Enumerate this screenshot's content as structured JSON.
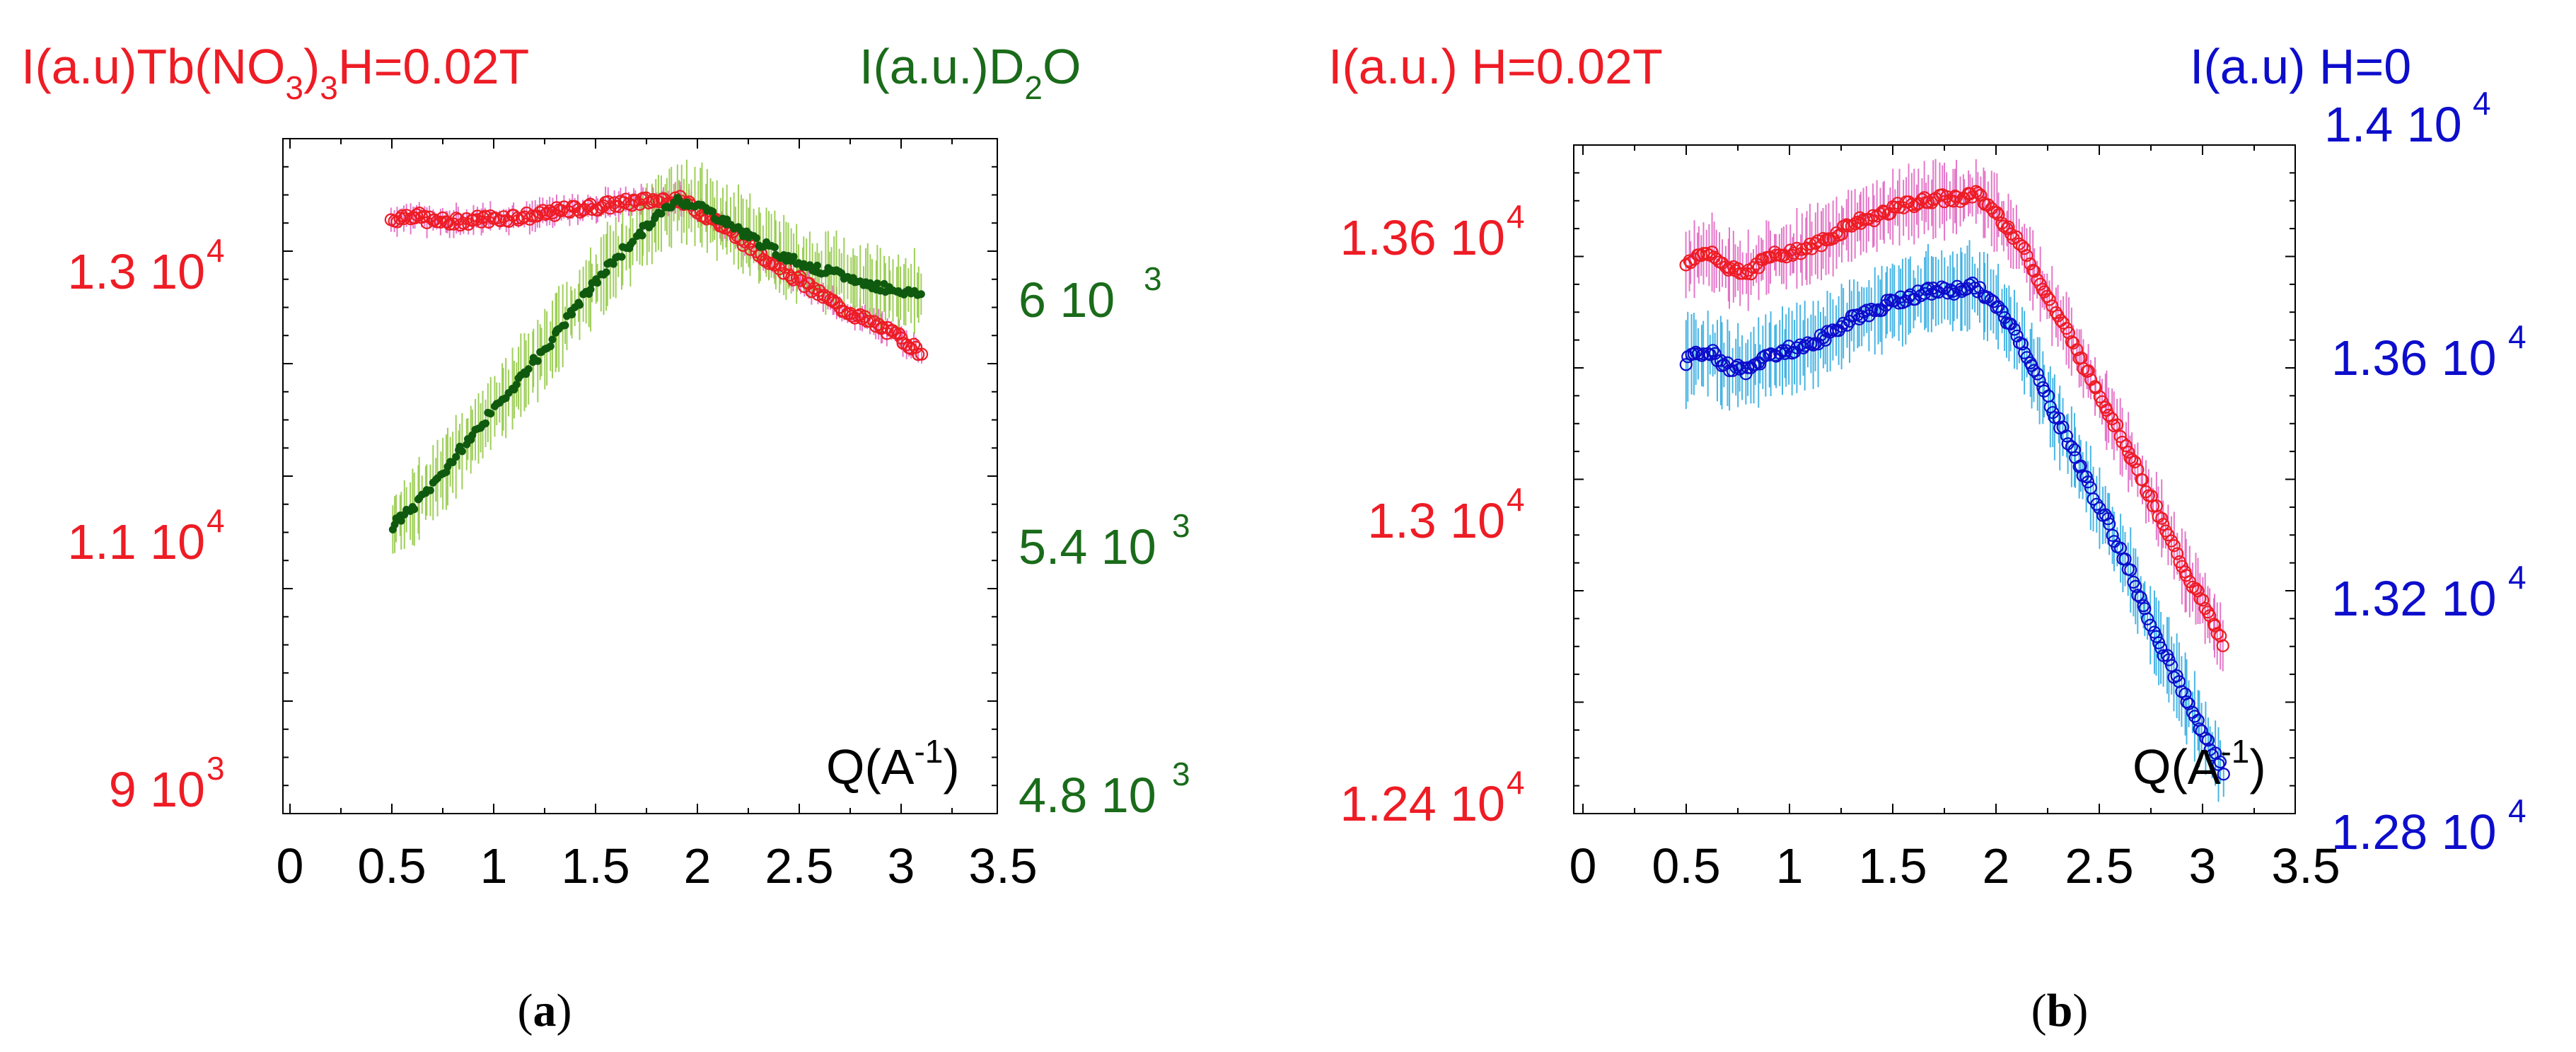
{
  "figure": {
    "panels": [
      {
        "id": "a",
        "caption_open": "(",
        "caption_letter": "a",
        "caption_close": ")",
        "left_label_main": "I(a.u)Tb(NO",
        "left_label_sub1": "3",
        "left_label_mid": ")",
        "left_label_sub2": "3",
        "left_label_end": "H=0.02T",
        "right_label_main": "I(a.u.)D",
        "right_label_sub": "2",
        "right_label_end": "O",
        "x_label_main": "Q(A",
        "x_label_sup": "-1",
        "x_label_end": ")",
        "left_ticks": [
          {
            "value": 13000,
            "mant": "1.3 10",
            "exp": "4"
          },
          {
            "value": 11000,
            "mant": "1.1 10",
            "exp": "4"
          },
          {
            "value": 9000,
            "mant": "9 10",
            "exp": "3"
          }
        ],
        "right_ticks": [
          {
            "value": 6000,
            "mant": "6 10",
            "exp": "3"
          },
          {
            "value": 5400,
            "mant": "5.4 10",
            "exp": "3"
          },
          {
            "value": 4800,
            "mant": "4.8 10",
            "exp": "3"
          }
        ],
        "x_ticks": [
          "0",
          "0.5",
          "1",
          "1.5",
          "2",
          "2.5",
          "3",
          "3.5"
        ]
      },
      {
        "id": "b",
        "caption_open": "(",
        "caption_letter": "b",
        "caption_close": ")",
        "left_label": "I(a.u.) H=0.02T",
        "right_label": "I(a.u) H=0",
        "right_top_mant": "1.4 10",
        "right_top_exp": "4",
        "x_label_main": "Q(A",
        "x_label_sup": "-1",
        "x_label_end": ")",
        "left_ticks": [
          {
            "value": 13600,
            "mant": "1.36 10",
            "exp": "4"
          },
          {
            "value": 13000,
            "mant": "1.3 10",
            "exp": "4"
          },
          {
            "value": 12400,
            "mant": "1.24 10",
            "exp": "4"
          }
        ],
        "right_ticks": [
          {
            "value": 13600,
            "mant": "1.36 10",
            "exp": "4"
          },
          {
            "value": 13200,
            "mant": "1.32 10",
            "exp": "4"
          },
          {
            "value": 12800,
            "mant": "1.28 10",
            "exp": "4"
          }
        ],
        "x_ticks": [
          "0",
          "0.5",
          "1",
          "1.5",
          "2",
          "2.5",
          "3",
          "3.5"
        ]
      }
    ]
  },
  "colors": {
    "red": "#ee1c25",
    "green": "#1a6b1a",
    "green_points": "#0f5a0f",
    "green_errorbars": "#8fc73e",
    "blue": "#0d0dcc",
    "cyan_errorbars": "#29a9e0",
    "pink_errorbars": "#e060c0",
    "axis": "#000000"
  },
  "chart_data": [
    {
      "panel": "a",
      "type": "scatter",
      "title": "",
      "xlabel": "Q(A^-1)",
      "xlim": [
        0,
        3.5
      ],
      "series": [
        {
          "name": "Tb(NO3)3 H=0.02T",
          "axis": "left",
          "ylabel": "I(a.u)Tb(NO3)3H=0.02T",
          "ylim": [
            8600,
            13850
          ],
          "marker": "open-circle",
          "color": "#ee1c25",
          "errorbar_color": "#e060c0",
          "err": 90,
          "x": [
            0.5,
            0.6,
            0.7,
            0.8,
            0.9,
            1.0,
            1.1,
            1.2,
            1.3,
            1.4,
            1.5,
            1.6,
            1.7,
            1.8,
            1.9,
            2.0,
            2.1,
            2.2,
            2.3,
            2.4,
            2.5,
            2.6,
            2.7,
            2.8,
            2.9,
            3.0,
            3.1
          ],
          "y": [
            13220,
            13260,
            13210,
            13200,
            13220,
            13230,
            13240,
            13250,
            13280,
            13300,
            13320,
            13340,
            13360,
            13370,
            13380,
            13300,
            13200,
            13080,
            12960,
            12860,
            12750,
            12640,
            12540,
            12460,
            12380,
            12300,
            12180
          ]
        },
        {
          "name": "D2O",
          "axis": "right",
          "ylabel": "I(a.u.)D2O",
          "ylim": [
            4700,
            6340
          ],
          "marker": "filled-circle",
          "color": "#0f5a0f",
          "errorbar_color": "#8fc73e",
          "err": 75,
          "x": [
            0.5,
            0.6,
            0.7,
            0.8,
            0.9,
            1.0,
            1.1,
            1.2,
            1.3,
            1.4,
            1.5,
            1.6,
            1.7,
            1.8,
            1.9,
            2.0,
            2.1,
            2.2,
            2.3,
            2.4,
            2.5,
            2.6,
            2.7,
            2.8,
            2.9,
            3.0,
            3.1
          ],
          "y": [
            5400,
            5440,
            5500,
            5560,
            5620,
            5680,
            5740,
            5800,
            5860,
            5930,
            5990,
            6050,
            6100,
            6150,
            6190,
            6180,
            6150,
            6120,
            6090,
            6060,
            6040,
            6020,
            6010,
            5990,
            5980,
            5970,
            5960
          ]
        }
      ]
    },
    {
      "panel": "b",
      "type": "scatter",
      "title": "",
      "xlabel": "Q(A^-1)",
      "xlim": [
        0,
        3.5
      ],
      "series": [
        {
          "name": "H=0.02T",
          "axis": "left",
          "ylabel": "I(a.u.) H=0.02T",
          "ylim": [
            12350,
            13720
          ],
          "marker": "open-circle",
          "color": "#ee1c25",
          "errorbar_color": "#e060c0",
          "err": 60,
          "x": [
            0.5,
            0.6,
            0.7,
            0.8,
            0.9,
            1.0,
            1.1,
            1.2,
            1.3,
            1.4,
            1.5,
            1.6,
            1.7,
            1.8,
            1.9,
            2.0,
            2.1,
            2.2,
            2.3,
            2.4,
            2.5,
            2.6,
            2.7,
            2.8,
            2.9,
            3.0,
            3.1
          ],
          "y": [
            13480,
            13500,
            13470,
            13460,
            13490,
            13500,
            13510,
            13530,
            13560,
            13570,
            13590,
            13600,
            13610,
            13610,
            13620,
            13580,
            13530,
            13450,
            13370,
            13290,
            13210,
            13130,
            13040,
            12950,
            12860,
            12780,
            12700
          ]
        },
        {
          "name": "H=0",
          "axis": "right",
          "ylabel": "I(a.u) H=0",
          "ylim": [
            12780,
            14020
          ],
          "marker": "open-circle",
          "color": "#0d0dcc",
          "errorbar_color": "#29a9e0",
          "err": 60,
          "x": [
            0.5,
            0.6,
            0.7,
            0.8,
            0.9,
            1.0,
            1.1,
            1.2,
            1.3,
            1.4,
            1.5,
            1.6,
            1.7,
            1.8,
            1.9,
            2.0,
            2.1,
            2.2,
            2.3,
            2.4,
            2.5,
            2.6,
            2.7,
            2.8,
            2.9,
            3.0,
            3.1
          ],
          "y": [
            13620,
            13640,
            13610,
            13600,
            13630,
            13640,
            13650,
            13670,
            13700,
            13710,
            13730,
            13740,
            13750,
            13750,
            13760,
            13720,
            13670,
            13590,
            13510,
            13430,
            13350,
            13270,
            13180,
            13090,
            13010,
            12930,
            12860
          ]
        }
      ]
    }
  ]
}
